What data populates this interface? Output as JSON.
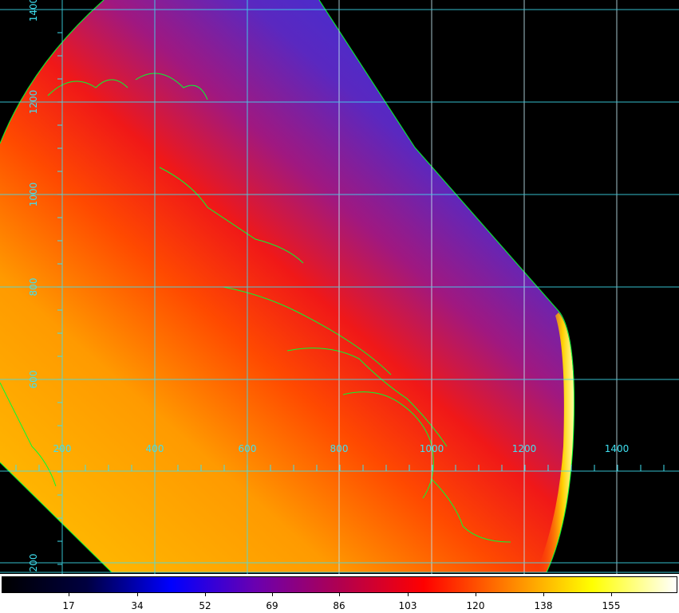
{
  "viewer": {
    "x_axis_labels": [
      "200",
      "400",
      "600",
      "800",
      "1000",
      "1200",
      "1400"
    ],
    "y_axis_labels": [
      "1400",
      "1200",
      "1000",
      "800",
      "600",
      "200"
    ],
    "colors": {
      "grid": "#3fe0f0",
      "contour": "#00ff30",
      "background": "#000000"
    }
  },
  "colorbar": {
    "ticks": [
      "17",
      "34",
      "52",
      "69",
      "86",
      "103",
      "120",
      "138",
      "155"
    ],
    "colormap": [
      "#000000",
      "#000040",
      "#0000ff",
      "#6a00b0",
      "#b00050",
      "#ff0000",
      "#ff8000",
      "#ffff00",
      "#ffffff"
    ]
  }
}
